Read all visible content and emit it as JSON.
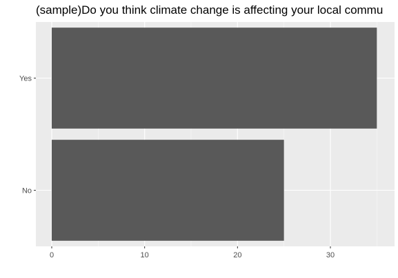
{
  "chart_data": {
    "type": "bar",
    "orientation": "horizontal",
    "title": "(sample)Do you think climate change is affecting your local commu",
    "categories": [
      "Yes",
      "No"
    ],
    "values": [
      35,
      25
    ],
    "xlim": [
      0,
      36.5
    ],
    "x_ticks": [
      0,
      10,
      20,
      30
    ],
    "x_minor_ticks": [
      5,
      15,
      25,
      35
    ],
    "grid": true,
    "bar_color": "#595959",
    "panel_background": "#ebebeb",
    "grid_color": "#ffffff",
    "xlabel": "",
    "ylabel": "",
    "legend": "none"
  }
}
